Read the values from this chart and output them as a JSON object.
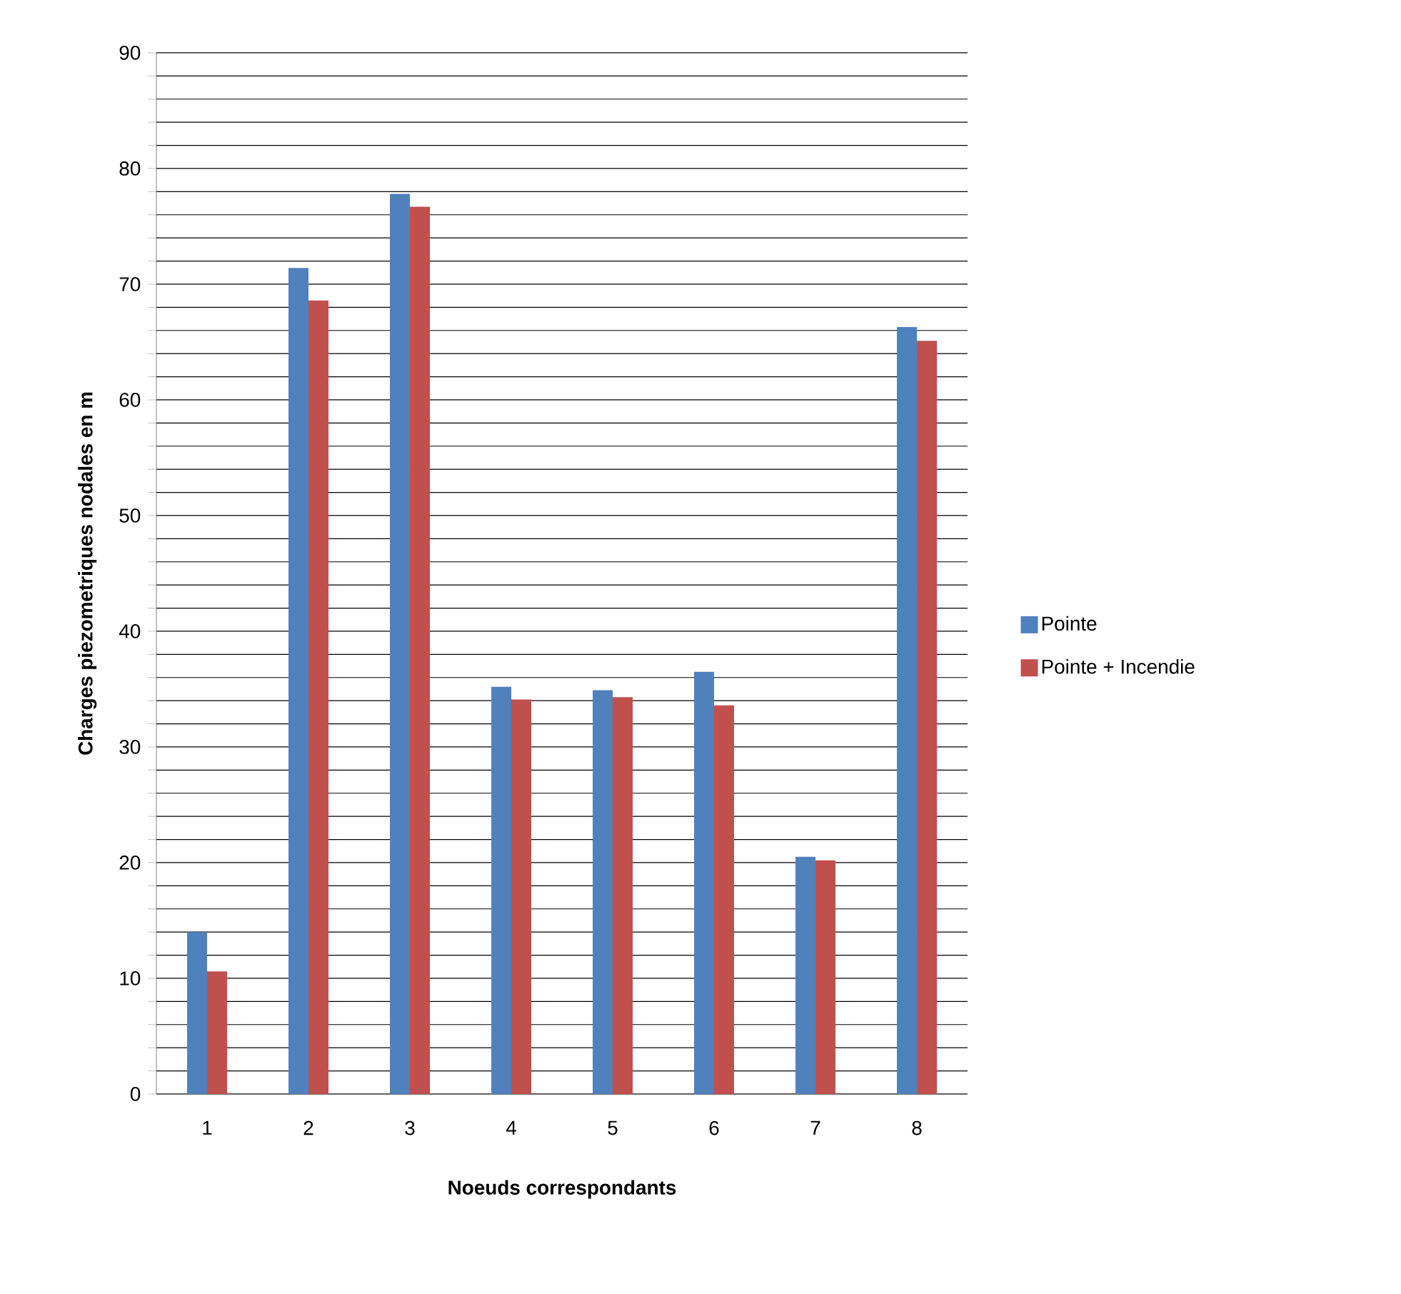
{
  "chart_data": {
    "type": "bar",
    "xlabel": "Noeuds correspondants",
    "ylabel": "Charges piezometriques nodales en m",
    "categories": [
      "1",
      "2",
      "3",
      "4",
      "5",
      "6",
      "7",
      "8"
    ],
    "series": [
      {
        "name": "Pointe",
        "color": "#4f81bd",
        "values": [
          14,
          71.4,
          77.8,
          35.2,
          34.9,
          36.5,
          20.5,
          66.3
        ]
      },
      {
        "name": "Pointe + Incendie",
        "color": "#c0504d",
        "values": [
          10.6,
          68.6,
          76.7,
          34.1,
          34.3,
          33.6,
          20.2,
          65.1
        ]
      }
    ],
    "ylim": [
      0,
      90
    ],
    "yticks": [
      0,
      {
        "value": 2,
        "label": null
      },
      {
        "value": 4,
        "label": null
      },
      {
        "value": 6,
        "label": null
      },
      {
        "value": 8,
        "label": null
      },
      10,
      {
        "value": 12,
        "label": null
      },
      {
        "value": 14,
        "label": null
      },
      {
        "value": 16,
        "label": null
      },
      {
        "value": 18,
        "label": null
      },
      20,
      {
        "value": 22,
        "label": null
      },
      {
        "value": 24,
        "label": null
      },
      {
        "value": 26,
        "label": null
      },
      {
        "value": 28,
        "label": null
      },
      30,
      {
        "value": 32,
        "label": null
      },
      {
        "value": 34,
        "label": null
      },
      {
        "value": 36,
        "label": null
      },
      {
        "value": 38,
        "label": null
      },
      40,
      {
        "value": 42,
        "label": null
      },
      {
        "value": 44,
        "label": null
      },
      {
        "value": 46,
        "label": null
      },
      {
        "value": 48,
        "label": null
      },
      50,
      {
        "value": 52,
        "label": null
      },
      {
        "value": 54,
        "label": null
      },
      {
        "value": 56,
        "label": null
      },
      {
        "value": 58,
        "label": null
      },
      60,
      {
        "value": 62,
        "label": null
      },
      {
        "value": 64,
        "label": null
      },
      {
        "value": 66,
        "label": null
      },
      {
        "value": 68,
        "label": null
      },
      70,
      {
        "value": 72,
        "label": null
      },
      {
        "value": 74,
        "label": null
      },
      {
        "value": 76,
        "label": null
      },
      {
        "value": 78,
        "label": null
      },
      80,
      {
        "value": 82,
        "label": null
      },
      {
        "value": 84,
        "label": null
      },
      {
        "value": 86,
        "label": null
      },
      {
        "value": 88,
        "label": null
      },
      90
    ],
    "grid": "y",
    "legend": "right"
  }
}
